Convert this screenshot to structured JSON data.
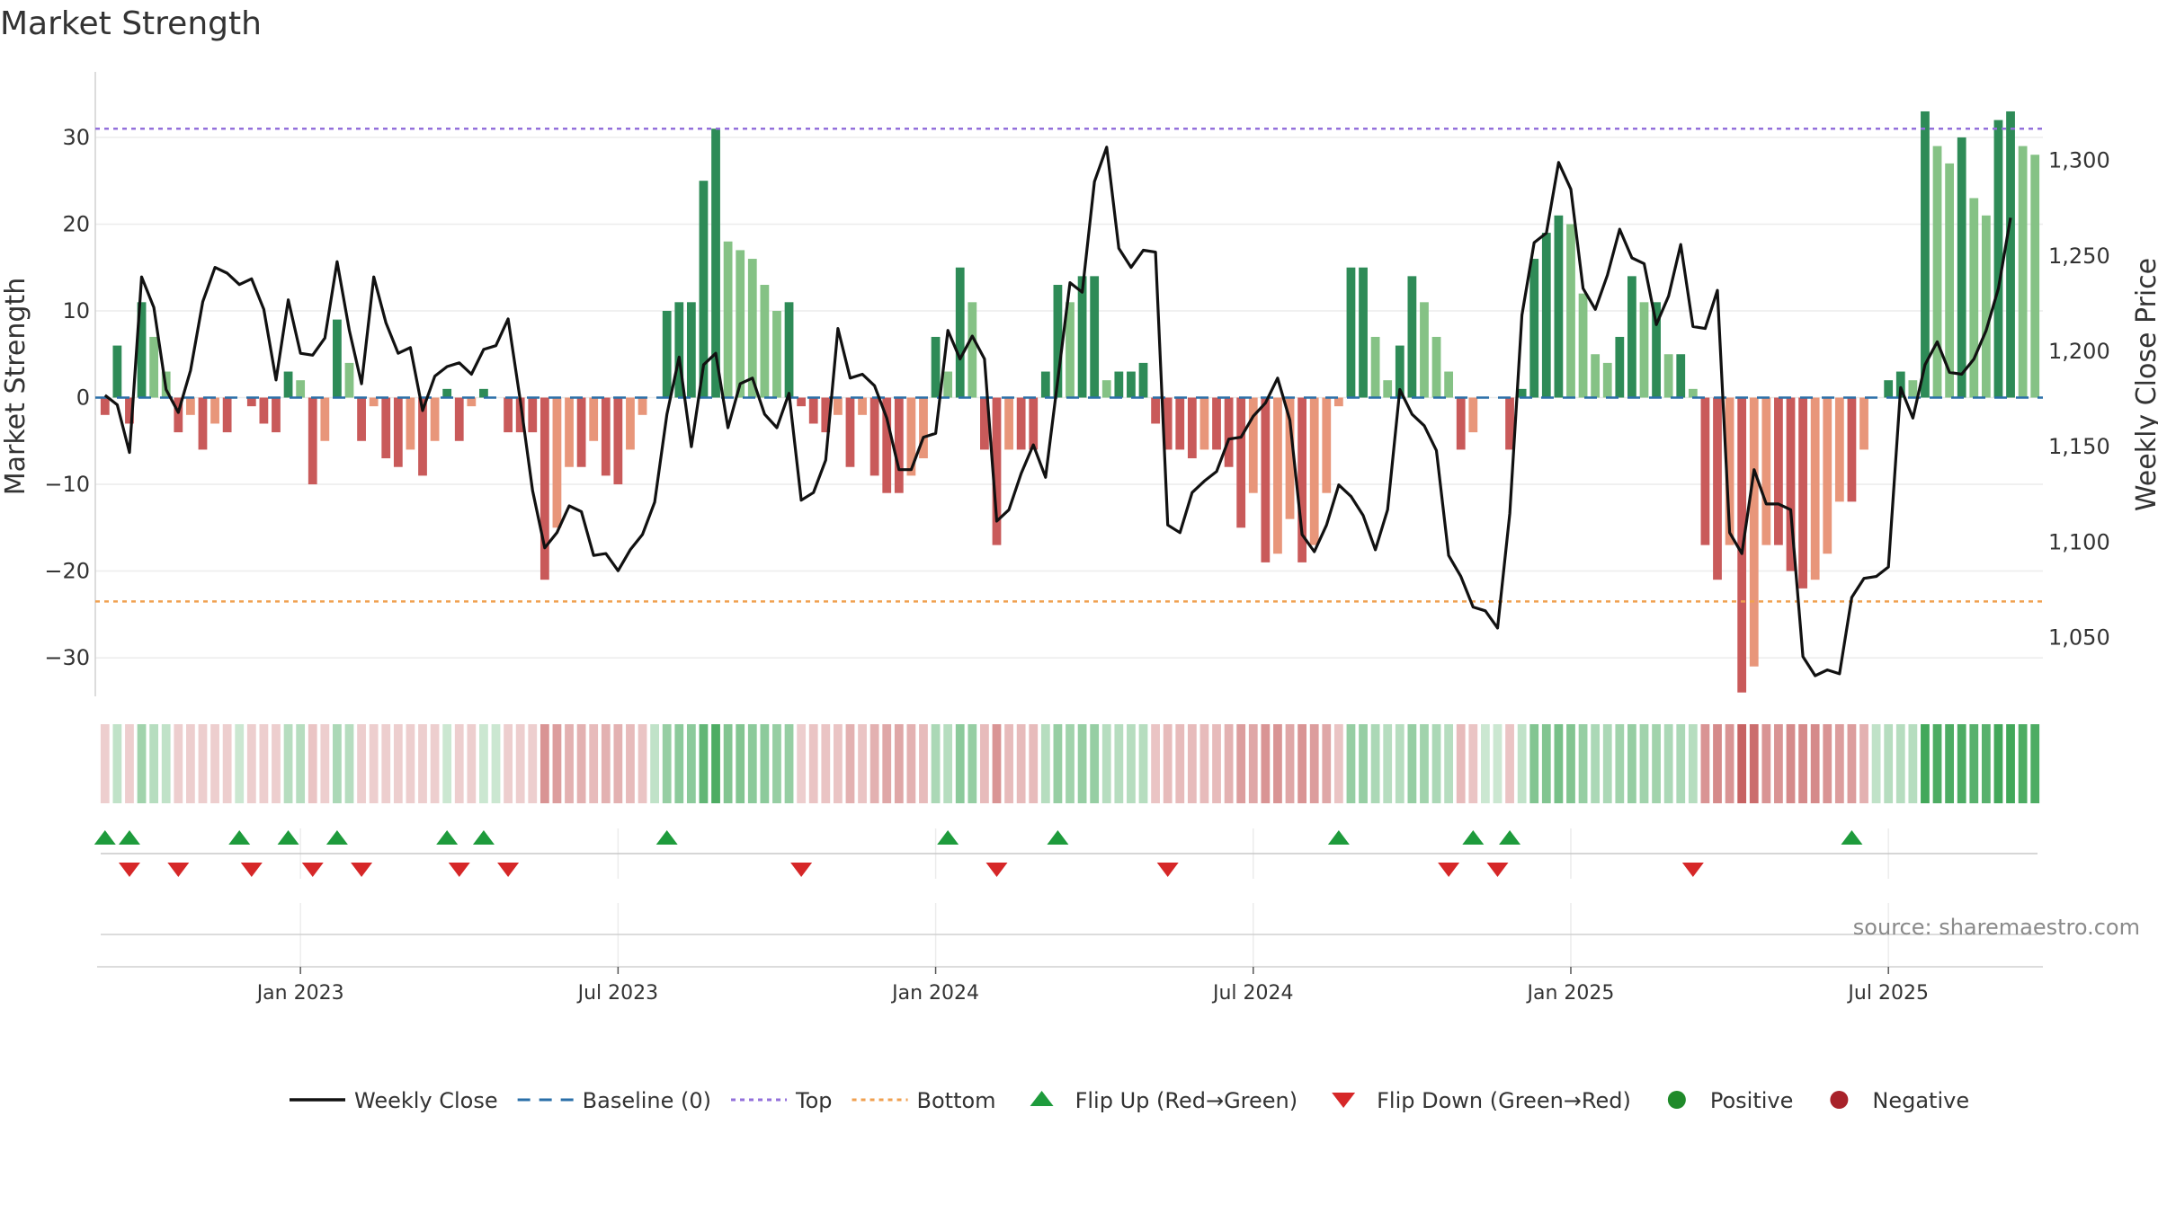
{
  "title": "Market Strength",
  "source": "source: sharemaestro.com",
  "chart_data": {
    "type": "bar",
    "y_left": {
      "label": "Market Strength",
      "ticks": [
        {
          "v": 30,
          "t": "30"
        },
        {
          "v": 20,
          "t": "20"
        },
        {
          "v": 10,
          "t": "10"
        },
        {
          "v": 0,
          "t": "0"
        },
        {
          "v": -10,
          "t": "−10"
        },
        {
          "v": -20,
          "t": "−20"
        },
        {
          "v": -30,
          "t": "−30"
        }
      ],
      "range": [
        -36,
        36
      ]
    },
    "y_right": {
      "label": "Weekly Close Price",
      "ticks": [
        {
          "v": 1300,
          "t": "1,300"
        },
        {
          "v": 1250,
          "t": "1,250"
        },
        {
          "v": 1200,
          "t": "1,200"
        },
        {
          "v": 1150,
          "t": "1,150"
        },
        {
          "v": 1100,
          "t": "1,100"
        },
        {
          "v": 1050,
          "t": "1,050"
        }
      ],
      "range": [
        1030,
        1330
      ]
    },
    "x_ticks": [
      {
        "i": 16,
        "t": "Jan 2023"
      },
      {
        "i": 42,
        "t": "Jul 2023"
      },
      {
        "i": 68,
        "t": "Jan 2024"
      },
      {
        "i": 94,
        "t": "Jul 2024"
      },
      {
        "i": 120,
        "t": "Jan 2025"
      },
      {
        "i": 146,
        "t": "Jul 2025"
      }
    ],
    "top_level": 31,
    "bottom_level": -23.5,
    "strength": [
      -2,
      6,
      -3,
      11,
      7,
      3,
      -4,
      -2,
      -6,
      -3,
      -4,
      0,
      -1,
      -3,
      -4,
      3,
      2,
      -10,
      -5,
      9,
      4,
      -5,
      -1,
      -7,
      -8,
      -6,
      -9,
      -5,
      1,
      -5,
      -1,
      1,
      0,
      -4,
      -4,
      -4,
      -21,
      -15,
      -8,
      -8,
      -5,
      -9,
      -10,
      -6,
      -2,
      0,
      10,
      11,
      11,
      25,
      31,
      18,
      17,
      16,
      13,
      10,
      11,
      -1,
      -3,
      -4,
      -2,
      -8,
      -2,
      -9,
      -11,
      -11,
      -9,
      -7,
      7,
      3,
      15,
      11,
      -6,
      -17,
      -6,
      -6,
      -6,
      3,
      13,
      11,
      14,
      14,
      2,
      3,
      3,
      4,
      -3,
      -6,
      -6,
      -7,
      -6,
      -6,
      -8,
      -15,
      -11,
      -19,
      -18,
      -14,
      -19,
      -17,
      -11,
      -1,
      15,
      15,
      7,
      2,
      6,
      14,
      11,
      7,
      3,
      -6,
      -4,
      0,
      0,
      -6,
      1,
      16,
      19,
      21,
      20,
      12,
      5,
      4,
      7,
      14,
      11,
      11,
      5,
      5,
      1,
      -17,
      -21,
      -17,
      -34,
      -31,
      -17,
      -17,
      -20,
      -22,
      -21,
      -18,
      -12,
      -12,
      -6,
      0,
      2,
      3,
      2,
      33,
      29,
      27,
      30,
      23,
      21,
      32,
      33,
      29,
      28
    ],
    "weekly_close": [
      1177,
      1172,
      1147,
      1239,
      1223,
      1180,
      1168,
      1190,
      1226,
      1244,
      1241,
      1235,
      1238,
      1222,
      1185,
      1227,
      1199,
      1198,
      1207,
      1247,
      1211,
      1183,
      1239,
      1215,
      1199,
      1202,
      1169,
      1187,
      1192,
      1194,
      1188,
      1201,
      1203,
      1217,
      1174,
      1127,
      1097,
      1105,
      1119,
      1116,
      1093,
      1094,
      1085,
      1096,
      1104,
      1121,
      1167,
      1197,
      1150,
      1193,
      1199,
      1160,
      1183,
      1186,
      1167,
      1160,
      1178,
      1122,
      1126,
      1143,
      1212,
      1186,
      1188,
      1182,
      1165,
      1138,
      1138,
      1155,
      1157,
      1211,
      1196,
      1208,
      1196,
      1111,
      1117,
      1136,
      1151,
      1134,
      1185,
      1236,
      1231,
      1289,
      1307,
      1254,
      1244,
      1253,
      1252,
      1109,
      1105,
      1126,
      1132,
      1137,
      1154,
      1155,
      1166,
      1173,
      1186,
      1164,
      1104,
      1095,
      1109,
      1130,
      1124,
      1114,
      1096,
      1117,
      1180,
      1167,
      1161,
      1148,
      1093,
      1082,
      1066,
      1064,
      1055,
      1115,
      1219,
      1257,
      1262,
      1299,
      1285,
      1233,
      1222,
      1240,
      1264,
      1249,
      1246,
      1214,
      1229,
      1256,
      1213,
      1212,
      1232,
      1105,
      1094,
      1138,
      1120,
      1120,
      1117,
      1040,
      1030,
      1033,
      1031,
      1071,
      1081,
      1082,
      1087,
      1181,
      1165,
      1193,
      1205,
      1189,
      1188,
      1196,
      1211,
      1233,
      1270
    ],
    "state_bar_alpha": [
      0.25,
      0.3,
      0.25,
      0.45,
      0.35,
      0.3,
      0.25,
      0.25,
      0.25,
      0.25,
      0.25,
      0.25,
      0.25,
      0.25,
      0.25,
      0.35,
      0.35,
      0.3,
      0.25,
      0.4,
      0.35,
      0.25,
      0.25,
      0.25,
      0.25,
      0.25,
      0.25,
      0.25,
      0.25,
      0.25,
      0.25,
      0.25,
      0.25,
      0.25,
      0.25,
      0.25,
      0.55,
      0.5,
      0.4,
      0.4,
      0.35,
      0.4,
      0.4,
      0.35,
      0.3,
      0.3,
      0.5,
      0.55,
      0.55,
      0.75,
      0.85,
      0.6,
      0.6,
      0.55,
      0.55,
      0.5,
      0.5,
      0.25,
      0.3,
      0.3,
      0.3,
      0.4,
      0.3,
      0.4,
      0.45,
      0.45,
      0.4,
      0.35,
      0.4,
      0.35,
      0.55,
      0.5,
      0.35,
      0.55,
      0.35,
      0.35,
      0.35,
      0.35,
      0.5,
      0.45,
      0.5,
      0.5,
      0.35,
      0.35,
      0.35,
      0.35,
      0.3,
      0.35,
      0.35,
      0.35,
      0.35,
      0.35,
      0.4,
      0.5,
      0.45,
      0.55,
      0.55,
      0.45,
      0.55,
      0.5,
      0.45,
      0.3,
      0.5,
      0.5,
      0.4,
      0.35,
      0.35,
      0.5,
      0.45,
      0.4,
      0.35,
      0.35,
      0.3,
      0.25,
      0.25,
      0.3,
      0.3,
      0.6,
      0.6,
      0.65,
      0.6,
      0.5,
      0.4,
      0.4,
      0.45,
      0.5,
      0.45,
      0.45,
      0.4,
      0.4,
      0.35,
      0.55,
      0.6,
      0.55,
      0.8,
      0.75,
      0.55,
      0.55,
      0.6,
      0.6,
      0.6,
      0.55,
      0.5,
      0.5,
      0.4,
      0.3,
      0.35,
      0.35,
      0.35,
      0.9,
      0.85,
      0.85,
      0.85,
      0.8,
      0.8,
      0.9,
      0.9,
      0.85,
      0.85
    ],
    "flip_up_index": [
      0,
      2,
      11,
      15,
      19,
      28,
      31,
      46,
      69,
      78,
      101,
      112,
      115,
      143
    ],
    "flip_down_index": [
      2,
      6,
      12,
      17,
      21,
      29,
      33,
      57,
      73,
      87,
      110,
      114,
      130
    ],
    "legend": [
      {
        "key": "close",
        "label": "Weekly Close"
      },
      {
        "key": "baseline",
        "label": "Baseline (0)"
      },
      {
        "key": "top",
        "label": "Top"
      },
      {
        "key": "bottom",
        "label": "Bottom"
      },
      {
        "key": "flipup",
        "label": "Flip Up (Red→Green)"
      },
      {
        "key": "flipdown",
        "label": "Flip Down (Green→Red)"
      },
      {
        "key": "positive",
        "label": "Positive"
      },
      {
        "key": "negative",
        "label": "Negative"
      }
    ],
    "colors": {
      "pos_dark": "#2e8b57",
      "pos_light": "#85c285",
      "neg_dark": "#c95a5a",
      "neg_light": "#e8967a",
      "state_green": "#2e9e48",
      "state_red": "#b93c3c",
      "close_line": "#111111",
      "baseline": "#2a6fa8",
      "top": "#9370db",
      "bottom": "#f0a050",
      "flip_up": "#1e9b3c",
      "flip_down": "#d62728",
      "positive_dot": "#1f8a2a",
      "negative_dot": "#a8222a"
    }
  }
}
